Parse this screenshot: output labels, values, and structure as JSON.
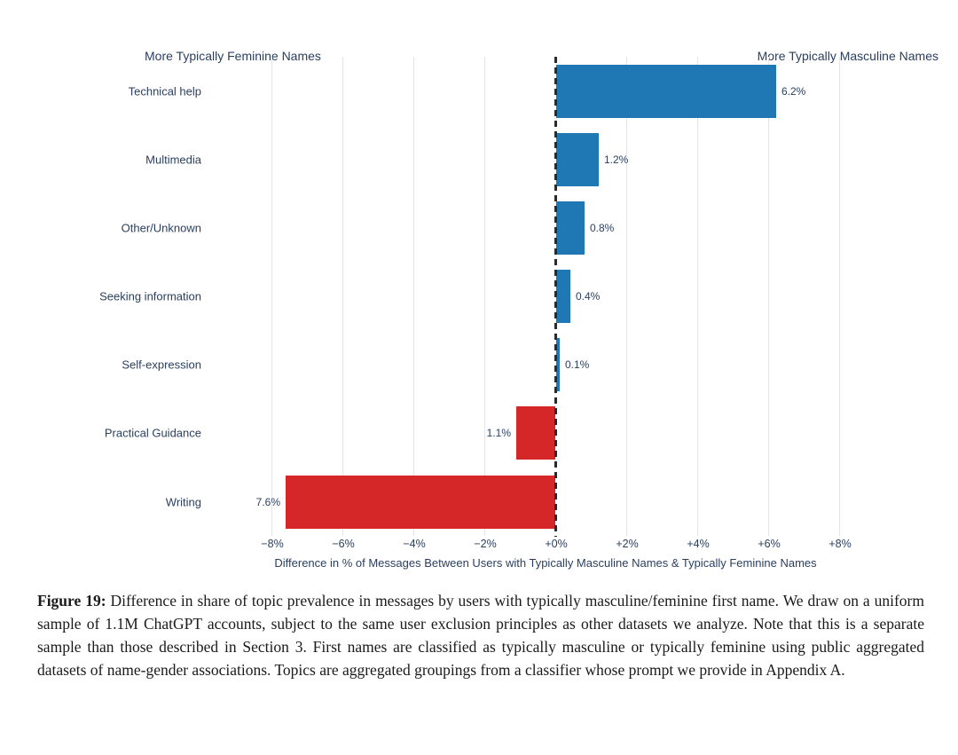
{
  "annotations": {
    "left": "More Typically Feminine Names",
    "right": "More Typically Masculine Names"
  },
  "chart_data": {
    "type": "bar",
    "orientation": "horizontal",
    "categories": [
      "Technical help",
      "Multimedia",
      "Other/Unknown",
      "Seeking information",
      "Self-expression",
      "Practical Guidance",
      "Writing"
    ],
    "values": [
      6.2,
      1.2,
      0.8,
      0.4,
      0.1,
      -1.1,
      -7.6
    ],
    "bar_labels": [
      "6.2%",
      "1.2%",
      "0.8%",
      "0.4%",
      "0.1%",
      "1.1%",
      "7.6%"
    ],
    "xlabel": "Difference in % of Messages Between Users with Typically Masculine Names & Typically Feminine Names",
    "x_tick_labels": [
      "−8%",
      "−6%",
      "−4%",
      "−2%",
      "+0%",
      "+2%",
      "+4%",
      "+6%",
      "+8%"
    ],
    "x_tick_values": [
      -8,
      -6,
      -4,
      -2,
      0,
      2,
      4,
      6,
      8
    ],
    "xlim": [
      -8.5,
      9.5
    ],
    "grid": true,
    "zero_line_style": "dashed-black",
    "positive_color": "#1f77b4",
    "negative_color": "#d62728",
    "label_color": "#2a3f5f",
    "gridline_color": "#e5e5e5",
    "annotation_left": "More Typically Feminine Names",
    "annotation_right": "More Typically Masculine Names"
  },
  "caption": {
    "label": "Figure 19:",
    "text": " Difference in share of topic prevalence in messages by users with typically masculine/feminine first name. We draw on a uniform sample of 1.1M ChatGPT accounts, subject to the same user exclusion principles as other datasets we analyze. Note that this is a separate sample than those described in Section 3. First names are classified as typically masculine or typically feminine using public aggregated datasets of name-gender associations. Topics are aggregated groupings from a classifier whose prompt we provide in Appendix A."
  }
}
